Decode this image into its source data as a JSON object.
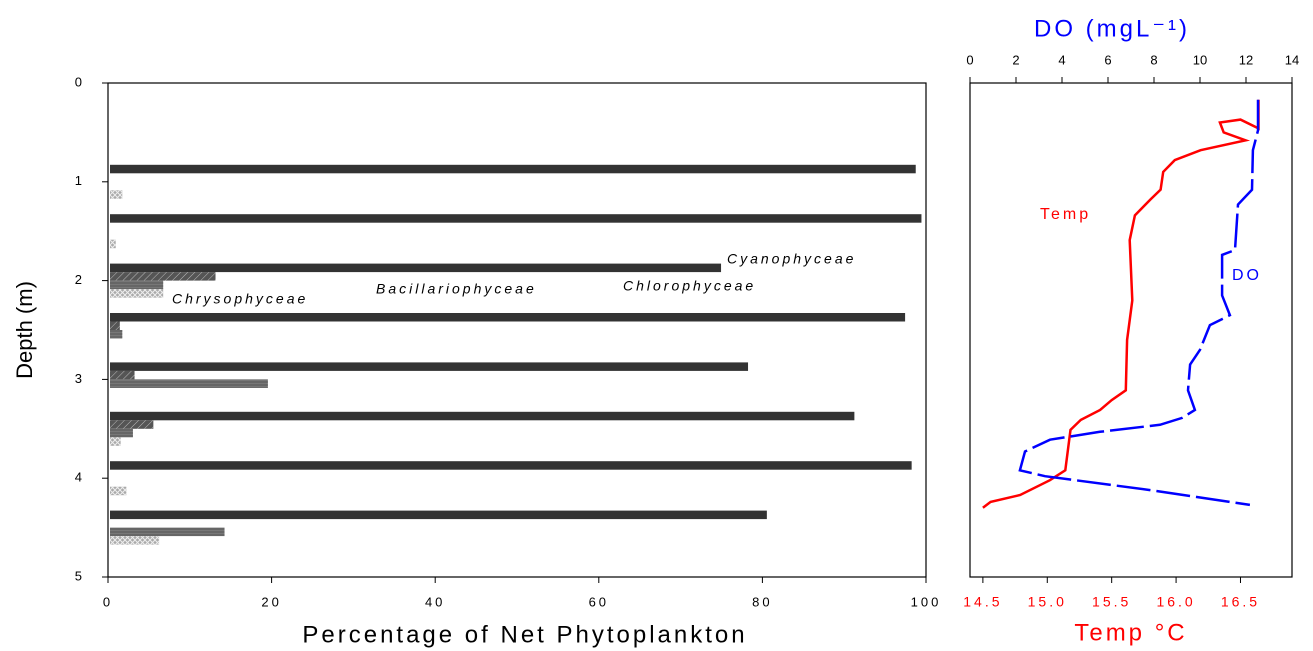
{
  "chart_data": [
    {
      "type": "hbar",
      "xlabel": "Percentage of Net Phytoplankton",
      "ylabel": "Depth (m)",
      "y": [
        1,
        1.5,
        2,
        2.5,
        3,
        3.5,
        4,
        4.5
      ],
      "series": [
        {
          "name": "Cyanophyceae",
          "color": "#333333",
          "hatch": null,
          "values": [
            98.5,
            99.2,
            74.7,
            97.2,
            78,
            91,
            98,
            80.3
          ]
        },
        {
          "name": "Bacillariophyceae",
          "color": "#555555",
          "hatch": "diagonal",
          "values": [
            0,
            0,
            12.9,
            1.2,
            3,
            5.3,
            0,
            0
          ]
        },
        {
          "name": "Chlorophyceae",
          "color": "#777777",
          "hatch": "horizontal",
          "values": [
            0,
            0,
            6.5,
            1.5,
            19.3,
            2.8,
            0,
            14
          ]
        },
        {
          "name": "Chrysophyceae",
          "color": "#aaaaaa",
          "hatch": "cross",
          "values": [
            1.5,
            0.7,
            6.5,
            0,
            0,
            1.3,
            2,
            6
          ]
        }
      ],
      "xlim": [
        0,
        100
      ],
      "xticks": [
        0,
        20,
        40,
        60,
        80,
        100
      ],
      "ylim": [
        0,
        5
      ],
      "yticks": [
        0,
        1,
        2,
        3,
        4,
        5
      ],
      "y_inverted": true
    },
    {
      "type": "line",
      "xlabel": "Temp °C",
      "x2label": "DO (mgL⁻¹)",
      "xlim": [
        14.4,
        16.9
      ],
      "xticks": [
        14.5,
        {
          "value": 15,
          "label": "15.0"
        },
        15.5,
        {
          "value": 16,
          "label": "16.0"
        },
        16.5
      ],
      "x2lim": [
        0,
        14
      ],
      "x2ticks": [
        0,
        2,
        4,
        6,
        8,
        10,
        12,
        14
      ],
      "ylim": [
        0,
        5
      ],
      "y_inverted": true,
      "series": [
        {
          "name": "Temp",
          "color": "#ff0000",
          "dashed": false,
          "x": [
            16.64,
            16.64,
            16.5,
            16.34,
            16.37,
            16.54,
            16.19,
            15.99,
            15.9,
            15.88,
            15.8,
            15.68,
            15.64,
            15.66,
            15.62,
            15.61,
            15.5,
            15.41,
            15.26,
            15.18,
            15.14,
            15.02,
            14.79,
            14.56,
            14.5
          ],
          "y": [
            0.17,
            0.46,
            0.37,
            0.4,
            0.5,
            0.58,
            0.68,
            0.78,
            0.9,
            1.08,
            1.18,
            1.34,
            1.59,
            2.2,
            2.6,
            3.11,
            3.21,
            3.31,
            3.41,
            3.51,
            3.92,
            4.02,
            4.17,
            4.24,
            4.3
          ]
        },
        {
          "name": "DO",
          "color": "#0000ff",
          "dashed": true,
          "axis": "x2",
          "x": [
            12.52,
            12.52,
            12.3,
            12.26,
            11.65,
            11.52,
            10.96,
            10.96,
            11.3,
            10.43,
            10.0,
            9.57,
            9.48,
            9.78,
            9.22,
            8.26,
            5.65,
            3.48,
            2.39,
            2.17,
            3.26,
            7.83,
            12.17
          ],
          "y": [
            0.17,
            0.48,
            0.68,
            1.08,
            1.23,
            1.69,
            1.74,
            2.15,
            2.35,
            2.45,
            2.7,
            2.85,
            3.11,
            3.31,
            3.39,
            3.46,
            3.53,
            3.61,
            3.73,
            3.92,
            3.98,
            4.12,
            4.27
          ]
        }
      ]
    }
  ]
}
